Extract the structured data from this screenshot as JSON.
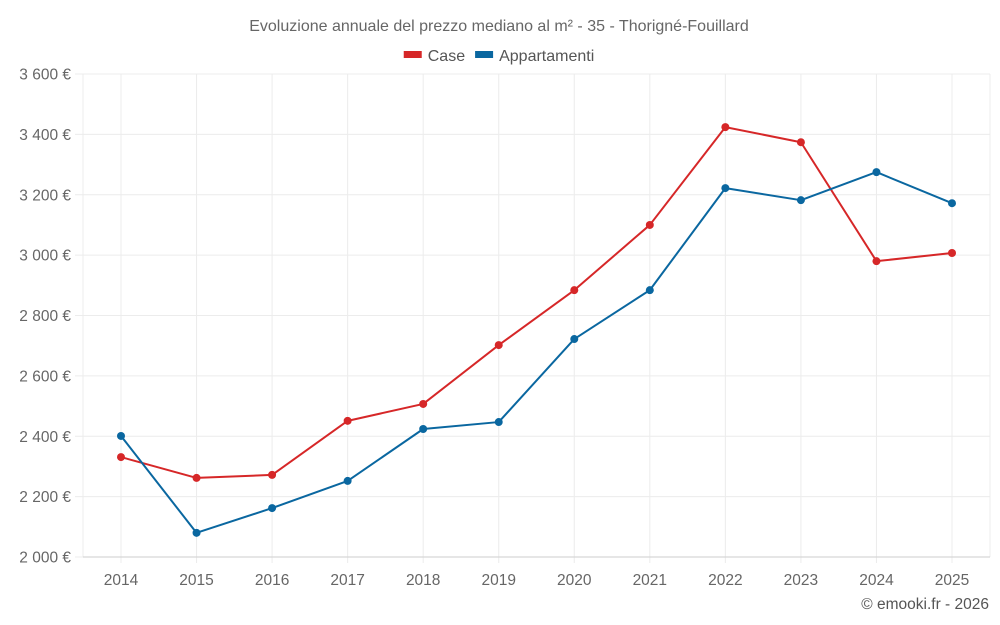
{
  "chart_data": {
    "type": "line",
    "title": "Evoluzione annuale del prezzo mediano al m² - 35 - Thorigné-Fouillard",
    "xlabel": "",
    "ylabel": "",
    "x": [
      "2014",
      "2015",
      "2016",
      "2017",
      "2018",
      "2019",
      "2020",
      "2021",
      "2022",
      "2023",
      "2024",
      "2025"
    ],
    "ylim": [
      2000,
      3600
    ],
    "yticks": [
      2000,
      2200,
      2400,
      2600,
      2800,
      3000,
      3200,
      3400,
      3600
    ],
    "ytick_labels": [
      "2 000 €",
      "2 200 €",
      "2 400 €",
      "2 600 €",
      "2 800 €",
      "3 000 €",
      "3 200 €",
      "3 400 €",
      "3 600 €"
    ],
    "grid": true,
    "legend_position": "top-center",
    "series": [
      {
        "name": "Case",
        "color": "#d62728",
        "values": [
          2331,
          2262,
          2272,
          2451,
          2507,
          2702,
          2884,
          3100,
          3424,
          3374,
          2980,
          3007
        ]
      },
      {
        "name": "Appartamenti",
        "color": "#0a67a0",
        "values": [
          2401,
          2080,
          2162,
          2252,
          2424,
          2447,
          2722,
          2884,
          3222,
          3182,
          3275,
          3172
        ]
      }
    ],
    "credit": "© emooki.fr - 2026"
  }
}
